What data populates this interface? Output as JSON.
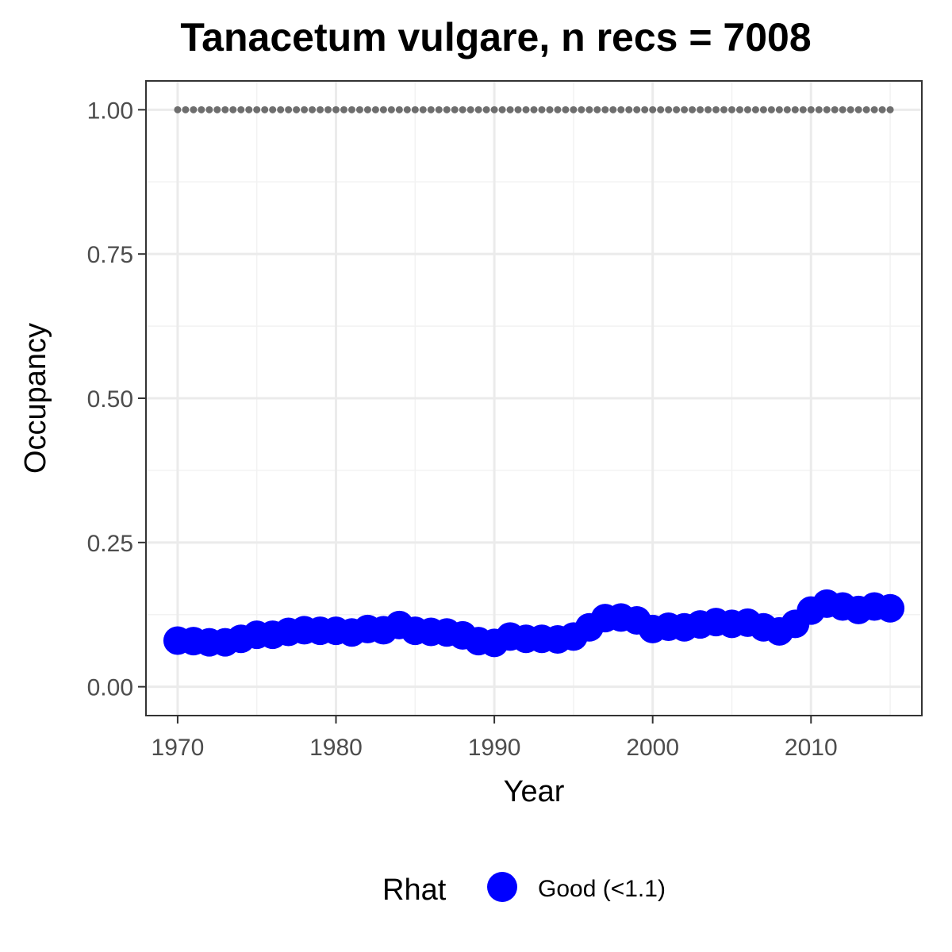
{
  "chart_data": {
    "type": "scatter",
    "title": "Tanacetum vulgare, n recs = 7008",
    "xlabel": "Year",
    "ylabel": "Occupancy",
    "xlim": [
      1968,
      2017
    ],
    "ylim": [
      -0.05,
      1.05
    ],
    "x_ticks": [
      1970,
      1980,
      1990,
      2000,
      2010
    ],
    "y_ticks": [
      0,
      0.25,
      0.5,
      0.75,
      1
    ],
    "y_tick_labels": [
      "0.00",
      "0.25",
      "0.50",
      "0.75",
      "1.00"
    ],
    "grid": true,
    "legend": {
      "title": "Rhat",
      "position": "bottom",
      "entries": [
        {
          "label": "Good (<1.1)",
          "color": "#0000ff"
        }
      ]
    },
    "series": [
      {
        "name": "Good (<1.1)",
        "color": "#0000ff",
        "x": [
          1970,
          1971,
          1972,
          1973,
          1974,
          1975,
          1976,
          1977,
          1978,
          1979,
          1980,
          1981,
          1982,
          1983,
          1984,
          1985,
          1986,
          1987,
          1988,
          1989,
          1990,
          1991,
          1992,
          1993,
          1994,
          1995,
          1996,
          1997,
          1998,
          1999,
          2000,
          2001,
          2002,
          2003,
          2004,
          2005,
          2006,
          2007,
          2008,
          2009,
          2010,
          2011,
          2012,
          2013,
          2014,
          2015
        ],
        "y": [
          0.08,
          0.079,
          0.077,
          0.077,
          0.083,
          0.09,
          0.09,
          0.095,
          0.098,
          0.097,
          0.097,
          0.094,
          0.1,
          0.098,
          0.107,
          0.097,
          0.095,
          0.094,
          0.089,
          0.079,
          0.076,
          0.087,
          0.083,
          0.083,
          0.082,
          0.087,
          0.103,
          0.119,
          0.12,
          0.115,
          0.1,
          0.104,
          0.103,
          0.108,
          0.112,
          0.109,
          0.111,
          0.103,
          0.096,
          0.109,
          0.132,
          0.144,
          0.139,
          0.133,
          0.139,
          0.136
        ]
      },
      {
        "name": "",
        "color": "#6e6e6e",
        "style": "dotted",
        "x": [
          1970,
          1971,
          1972,
          1973,
          1974,
          1975,
          1976,
          1977,
          1978,
          1979,
          1980,
          1981,
          1982,
          1983,
          1984,
          1985,
          1986,
          1987,
          1988,
          1989,
          1990,
          1991,
          1992,
          1993,
          1994,
          1995,
          1996,
          1997,
          1998,
          1999,
          2000,
          2001,
          2002,
          2003,
          2004,
          2005,
          2006,
          2007,
          2008,
          2009,
          2010,
          2011,
          2012,
          2013,
          2014,
          2015
        ],
        "y": [
          1,
          1,
          1,
          1,
          1,
          1,
          1,
          1,
          1,
          1,
          1,
          1,
          1,
          1,
          1,
          1,
          1,
          1,
          1,
          1,
          1,
          1,
          1,
          1,
          1,
          1,
          1,
          1,
          1,
          1,
          1,
          1,
          1,
          1,
          1,
          1,
          1,
          1,
          1,
          1,
          1,
          1,
          1,
          1,
          1,
          1
        ]
      }
    ]
  }
}
